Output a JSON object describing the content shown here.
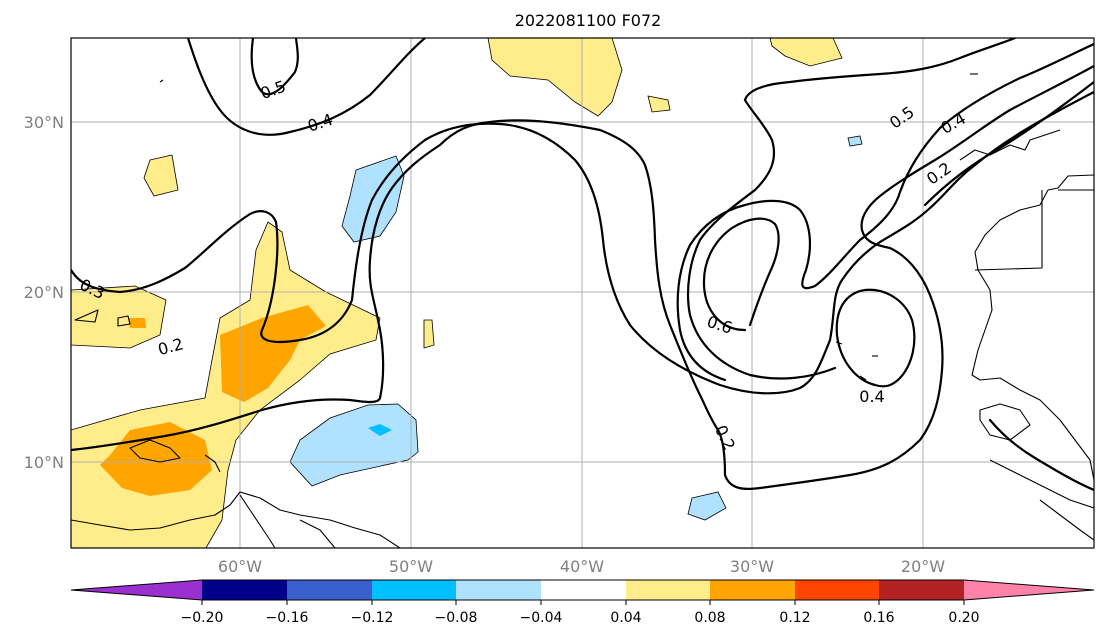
{
  "title": "2022081100 F072",
  "map": {
    "lon_ticks": [
      "60°W",
      "50°W",
      "40°W",
      "30°W",
      "20°W"
    ],
    "lat_ticks": [
      "30°N",
      "20°N",
      "10°N"
    ],
    "contour_labels": [
      "0.5",
      "0.4",
      "0.3",
      "0.2",
      "0.6",
      "0.2",
      "0.4",
      "0.5",
      "0.4",
      "0.2"
    ]
  },
  "colorbar": {
    "ticks": [
      "−0.20",
      "−0.16",
      "−0.12",
      "−0.08",
      "−0.04",
      "0.04",
      "0.08",
      "0.12",
      "0.16",
      "0.20"
    ],
    "colors": {
      "below": "#9b30d0",
      "b1": "#00008b",
      "b2": "#3a5fcd",
      "b3": "#00bfff",
      "b4": "#b0e2ff",
      "b5": "#ffffff",
      "b6": "#ffec8b",
      "b7": "#ffa500",
      "b8": "#ff4500",
      "b9": "#b22222",
      "above": "#ff82ab"
    }
  }
}
